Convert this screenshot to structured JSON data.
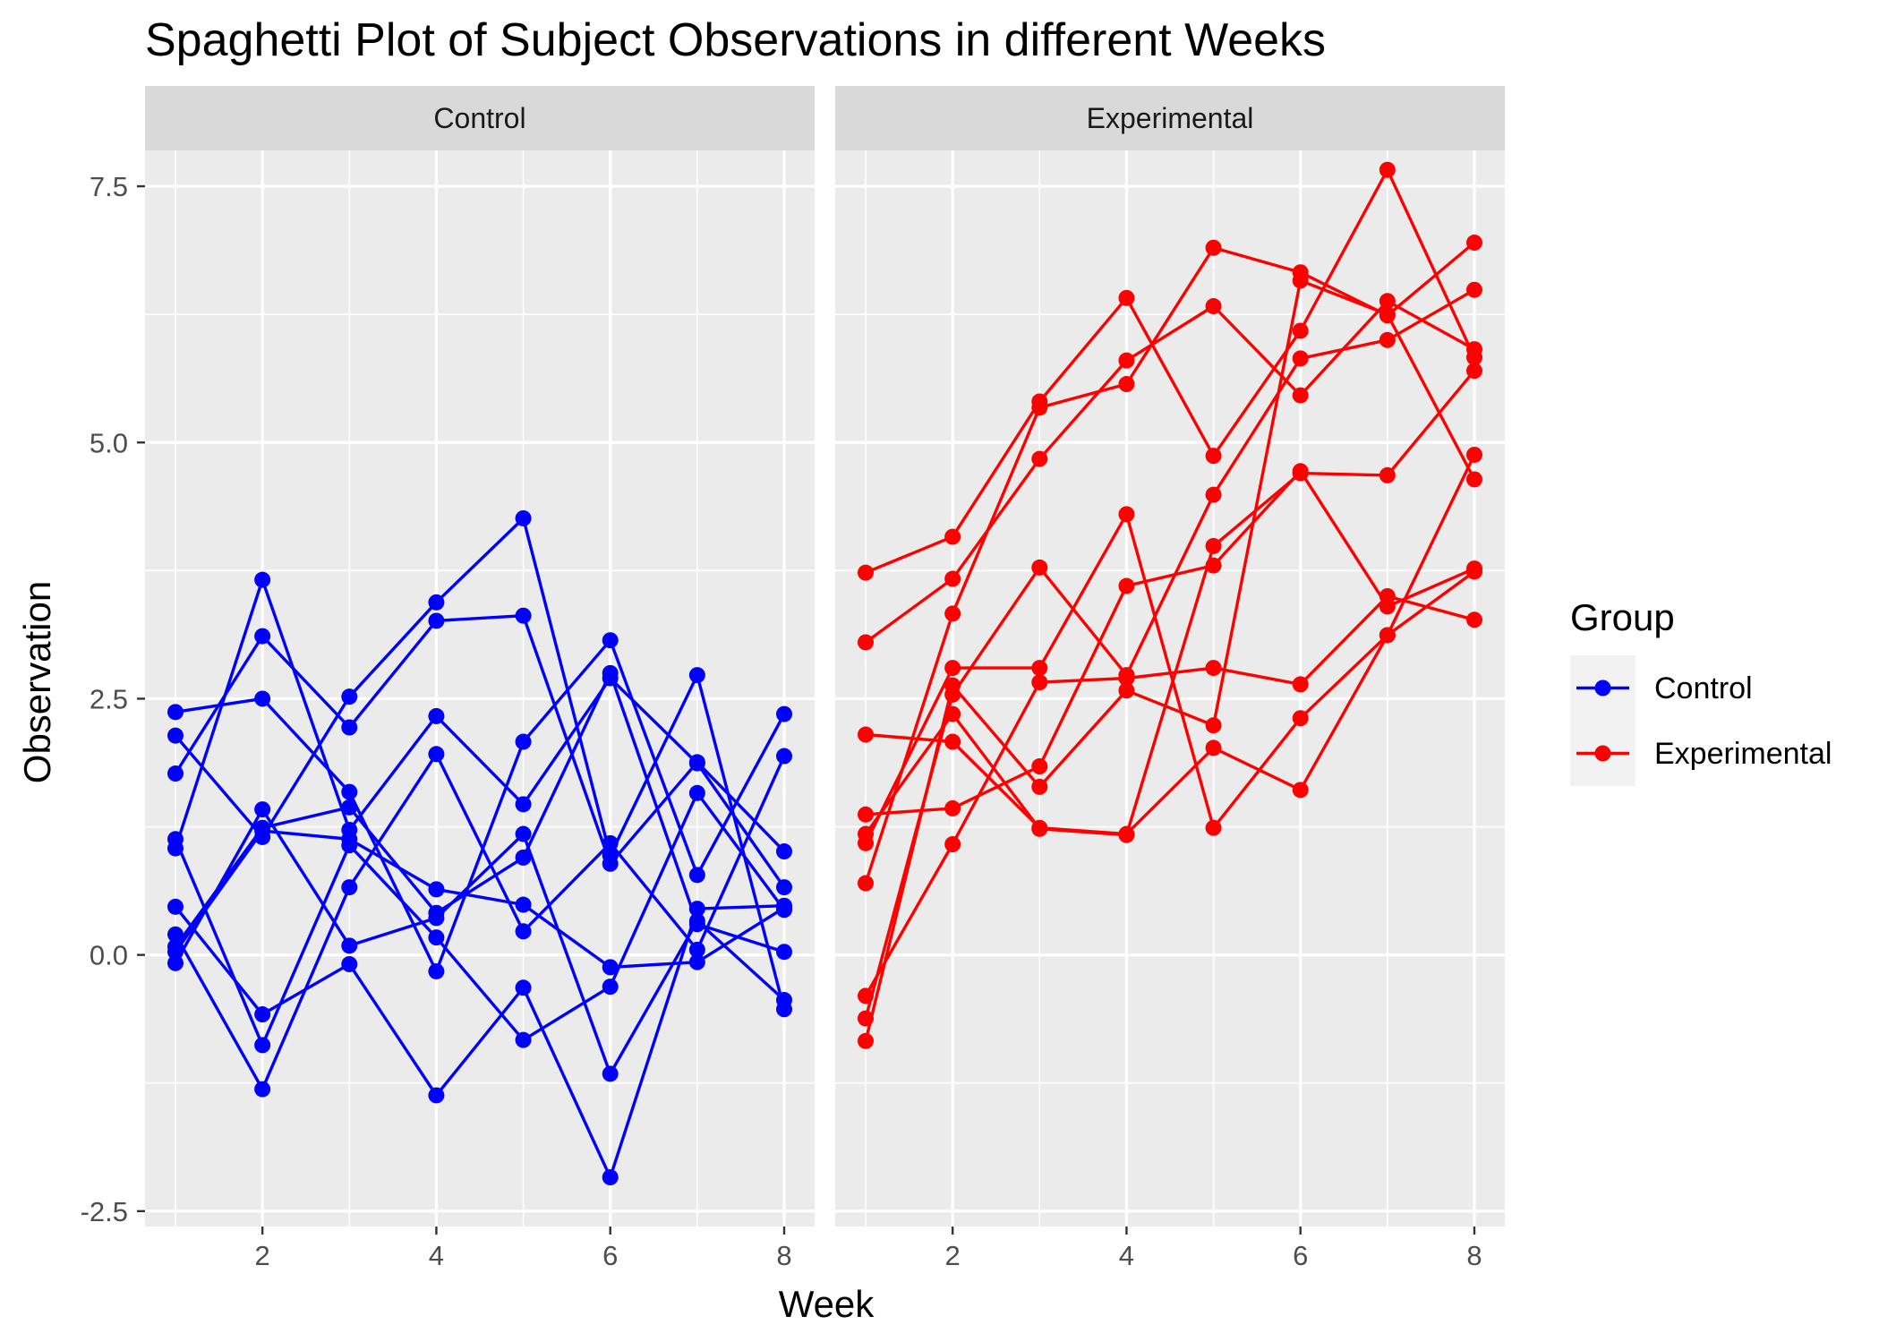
{
  "chart_data": {
    "type": "line",
    "title": "Spaghetti Plot of Subject Observations in different Weeks",
    "xlabel": "Week",
    "ylabel": "Observation",
    "x": [
      1,
      2,
      3,
      4,
      5,
      6,
      7,
      8
    ],
    "x_ticks": [
      2,
      4,
      6,
      8
    ],
    "x_tick_labels": [
      "2",
      "4",
      "6",
      "8"
    ],
    "xlim": [
      0.65,
      8.35
    ],
    "y_ticks": [
      -2.5,
      0,
      2.5,
      5,
      7.5
    ],
    "y_tick_labels": [
      "-2.5",
      "0.0",
      "2.5",
      "5.0",
      "7.5"
    ],
    "ylim": [
      -2.65,
      7.85
    ],
    "grid": true,
    "legend": {
      "title": "Group",
      "position": "right",
      "entries": [
        {
          "label": "Control",
          "color": "#0000FF"
        },
        {
          "label": "Experimental",
          "color": "#FF0000"
        }
      ]
    },
    "panels": [
      {
        "label": "Control",
        "color": "#0000FF",
        "subjects": [
          [
            0.2,
            -1.31,
            0.66,
            1.96,
            0.23,
            1.09,
            0.05,
            1.94
          ],
          [
            1.13,
            -0.88,
            1.07,
            0.17,
            -0.83,
            -0.31,
            1.58,
            0.44
          ],
          [
            1.77,
            3.11,
            2.22,
            3.26,
            3.31,
            0.89,
            1.88,
            1.01
          ],
          [
            1.04,
            3.66,
            1.22,
            2.33,
            1.47,
            2.7,
            1.87,
            0.66
          ],
          [
            0.47,
            -0.58,
            -0.09,
            -1.37,
            -0.32,
            -2.17,
            0.45,
            0.48
          ],
          [
            2.37,
            2.5,
            1.59,
            -0.16,
            2.08,
            3.07,
            0.78,
            2.35
          ],
          [
            0.03,
            1.21,
            1.13,
            0.64,
            0.49,
            -0.12,
            -0.07,
            0.46
          ],
          [
            -0.08,
            1.42,
            0.09,
            0.36,
            1.18,
            -1.16,
            0.33,
            -0.44
          ],
          [
            0.08,
            1.24,
            1.44,
            0.41,
            0.95,
            2.75,
            0.3,
            0.03
          ],
          [
            2.14,
            1.15,
            2.52,
            3.44,
            4.26,
            0.97,
            2.73,
            -0.53
          ]
        ]
      },
      {
        "label": "Experimental",
        "color": "#FF0000",
        "subjects": [
          [
            3.05,
            3.67,
            4.84,
            5.8,
            6.33,
            5.46,
            6.38,
            5.91
          ],
          [
            -0.84,
            2.63,
            1.64,
            2.58,
            2.24,
            6.58,
            6.25,
            4.64
          ],
          [
            2.15,
            2.08,
            1.24,
            1.18,
            2.02,
            1.61,
            3.12,
            4.88
          ],
          [
            -0.62,
            2.54,
            3.78,
            2.73,
            4.49,
            5.82,
            6.0,
            6.49
          ],
          [
            0.7,
            3.33,
            5.34,
            5.57,
            6.9,
            6.66,
            6.24,
            6.95
          ],
          [
            3.73,
            4.08,
            5.4,
            6.41,
            4.87,
            6.09,
            7.66,
            5.83
          ],
          [
            1.18,
            2.35,
            1.23,
            1.17,
            3.99,
            4.7,
            4.68,
            5.7
          ],
          [
            1.37,
            1.43,
            1.84,
            3.6,
            3.8,
            4.72,
            3.4,
            3.77
          ],
          [
            -0.4,
            1.08,
            2.66,
            2.7,
            2.8,
            2.64,
            3.5,
            3.27
          ],
          [
            1.09,
            2.8,
            2.8,
            4.3,
            1.24,
            2.31,
            3.12,
            3.74
          ]
        ]
      }
    ]
  }
}
